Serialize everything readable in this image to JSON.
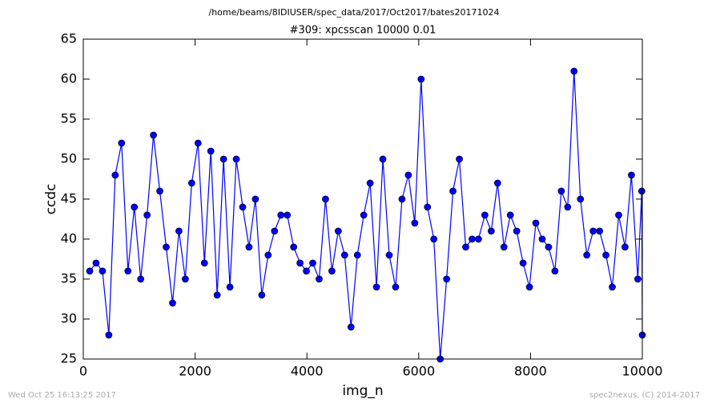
{
  "chart_data": {
    "type": "line",
    "suptitle": "/home/beams/8IDIUSER/spec_data/2017/Oct2017/bates20171024",
    "title": "#309: xpcsscan 10000 0.01",
    "xlabel": "img_n",
    "ylabel": "ccdc",
    "footer_left": "Wed Oct 25 16:13:25 2017",
    "footer_right": "spec2nexus, (C) 2014-2017",
    "color": "#0000ff",
    "x": [
      115,
      229,
      343,
      457,
      571,
      685,
      799,
      913,
      1027,
      1141,
      1255,
      1369,
      1483,
      1597,
      1711,
      1825,
      1939,
      2053,
      2167,
      2281,
      2395,
      2509,
      2623,
      2737,
      2851,
      2965,
      3079,
      3193,
      3307,
      3421,
      3535,
      3649,
      3763,
      3877,
      3991,
      4105,
      4219,
      4333,
      4447,
      4561,
      4675,
      4789,
      4903,
      5017,
      5131,
      5245,
      5359,
      5473,
      5587,
      5701,
      5815,
      5929,
      6043,
      6157,
      6271,
      6385,
      6499,
      6613,
      6727,
      6841,
      6955,
      7069,
      7183,
      7297,
      7411,
      7525,
      7639,
      7753,
      7867,
      7981,
      8095,
      8209,
      8323,
      8437,
      8551,
      8665,
      8779,
      8893,
      9007,
      9121,
      9235,
      9349,
      9463,
      9577,
      9691,
      9805,
      9919,
      9990,
      10000
    ],
    "values": [
      36,
      37,
      36,
      28,
      48,
      52,
      36,
      44,
      35,
      43,
      53,
      46,
      39,
      32,
      41,
      35,
      47,
      52,
      37,
      51,
      33,
      50,
      34,
      50,
      44,
      39,
      45,
      33,
      38,
      41,
      43,
      43,
      39,
      37,
      36,
      37,
      35,
      45,
      36,
      41,
      38,
      29,
      38,
      43,
      47,
      34,
      50,
      38,
      34,
      45,
      48,
      42,
      60,
      44,
      40,
      25,
      35,
      46,
      50,
      39,
      40,
      40,
      43,
      41,
      47,
      39,
      43,
      41,
      37,
      34,
      42,
      40,
      39,
      36,
      46,
      44,
      61,
      45,
      38,
      41,
      41,
      38,
      34,
      43,
      39,
      48,
      35,
      46,
      28
    ],
    "xlim": [
      0,
      10000
    ],
    "xticks": [
      0,
      2000,
      4000,
      6000,
      8000,
      10000
    ],
    "ylim": [
      25,
      65
    ],
    "yticks": [
      25,
      30,
      35,
      40,
      45,
      50,
      55,
      60,
      65
    ],
    "grid": false
  }
}
